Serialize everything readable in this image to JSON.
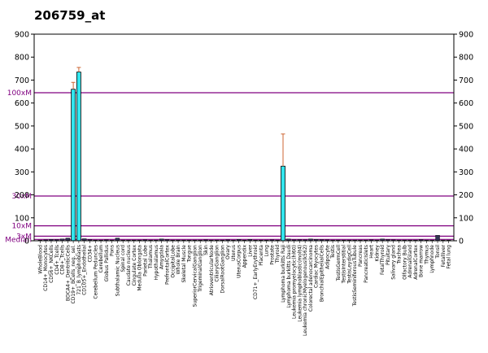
{
  "chart_data": {
    "type": "bar",
    "title": "206759_at",
    "ylim": [
      0,
      900
    ],
    "yticks": [
      0,
      100,
      200,
      300,
      400,
      500,
      600,
      700,
      800,
      900
    ],
    "bar_color": "#33e6ee",
    "line_color": "#800080",
    "error_color": "#cc6633",
    "reference_lines": [
      {
        "label": "100xM",
        "value": 645
      },
      {
        "label": "30xM",
        "value": 195
      },
      {
        "label": "10xM",
        "value": 65
      },
      {
        "label": "3xM",
        "value": 20
      },
      {
        "label": "Median",
        "value": 6
      }
    ],
    "categories": [
      "WholeBlood",
      "CD14+_Monocytes",
      "CD56+_NKCells",
      "CD4+_Tcells",
      "CD8+_Tcells",
      "BDCA4+_DentriticCells",
      "CD19+_BCells_neg._sel.",
      "721_B_lymphoblasts",
      "CD105+_Endothelial",
      "CD34+",
      "Cerebellum Peduncles",
      "Cerebellum",
      "Globus Pallidus",
      "Pons",
      "Subthalamic Nucleus",
      "Spinal cord",
      "Caudate nucleus",
      "Cingulate Cortex",
      "Medulla Oblongata",
      "Parietal Lobe",
      "Thalamus",
      "Hypothalamus",
      "Amygdala",
      "PrefrontalCortex",
      "OccipitalLobe",
      "Whole Brain",
      "Skeletal Muscle",
      "Tongue",
      "SuperiorCervicalGanglion",
      "TrigeminalGanglion",
      "Skin",
      "AtrioventricularNode",
      "CiliaryGanglion",
      "DorsalRootGanglion",
      "Ovary",
      "Uterus",
      "UterusCorpus",
      "Appendix",
      "Liver",
      "CD71+_EarlyErythroid",
      "Placenta",
      "Lung",
      "Prostate",
      "Thyroid",
      "Lymphoma burkitts Raji",
      "Lymphoma burkitts Daudi",
      "Leukemia promyelocytic(hl60)",
      "Leukemia lymphoblastic(molt4)",
      "Leukemia chronicMyelogenous(k562)",
      "Colorectal adenocarcinoma",
      "Cardiac Myocytes",
      "BronchialEpithelialCells",
      "Adipocyte",
      "Testis",
      "TestisGermCell",
      "TestisInterstitial",
      "TestisLeydigCell",
      "TestisSeminiferousTubule",
      "Pancreas",
      "PancreaticIslets",
      "Heart",
      "Kidney",
      "FetalThyroid",
      "Pituitary",
      "Salivary gland",
      "Trachea",
      "Olfactory Bulb",
      "AdrenalGland",
      "AdrenalCortex",
      "Bone marrow",
      "Thymus",
      "Lymphnode",
      "Tonsil",
      "Fetalliver",
      "Fetal lung"
    ],
    "x_labels": [
      "WholeBlood",
      "CD14+_Monocytes",
      "CD56+_NKCells",
      "CD4+_Tcells",
      "CD8+_Tcells",
      "BDCA4+_DentriticCells",
      "CD19+_BCells_neg._sel.",
      "721_B_lymphoblasts",
      "CD105+_Endothelial",
      "CD34+",
      "Cerebellum Peduncles",
      "Cerebellum",
      "Globus Pallidus",
      "Pons",
      "Subthalamic Nucleus",
      "Spinal cord",
      "Caudate nucleus",
      "Cingulate Cortex",
      "Medulla Oblongata",
      "Parietal Lobe",
      "Thalamus",
      "Hypothalamus",
      "Amygdala",
      "PrefrontalCortex",
      "OccipitalLobe",
      "Whole Brain",
      "Skeletal Muscle",
      "Tongue",
      "SuperiorCervicalGanglion",
      "TrigeminalGanglion",
      "Skin",
      "AtrioventricularNode",
      "CiliaryGanglion",
      "DorsalRootGanglion",
      "Ovary",
      "Uterus",
      "UterusCorpus",
      "Appendix",
      "Liver",
      "CD71+_EarlyErythroid",
      "Placenta",
      "Lung",
      "Prostate",
      "Thyroid",
      "Lymphoma burkitts Raji",
      "Lymphoma burkitts Daudi",
      "Leukemia promyelocytic(hl60)",
      "Leukemia lymphoblastic(molt4)",
      "Leukemia chronicMyelogenous(k562)",
      "Colorectal adenocarcinoma",
      "Cardiac Myocytes",
      "BronchialEpithelialCells",
      "Adipocyte",
      "Testis",
      "TestisGermCell",
      "TestisInterstitial",
      "TestisLeydigCell",
      "TestisSeminiferousTubule",
      "Pancreas",
      "PancreaticIslets",
      "Heart",
      "Kidney",
      "FetalThyroid",
      "Pituitary",
      "Salivary gland",
      "Trachea",
      "Olfactory Bulb",
      "AdrenalGland",
      "AdrenalCortex",
      "Bone marrow",
      "Thymus",
      "Lymphnode",
      "Tonsil",
      "Fetalliver",
      "Fetal lung"
    ],
    "values": [
      3,
      4,
      6,
      5,
      8,
      12,
      660,
      735,
      9,
      5,
      3,
      3,
      4,
      3,
      12,
      3,
      3,
      3,
      3,
      4,
      3,
      3,
      8,
      5,
      3,
      3,
      3,
      3,
      3,
      3,
      4,
      3,
      3,
      3,
      4,
      3,
      6,
      3,
      6,
      3,
      3,
      3,
      4,
      3,
      325,
      8,
      4,
      5,
      4,
      8,
      6,
      5,
      4,
      3,
      3,
      3,
      3,
      3,
      3,
      3,
      4,
      3,
      8,
      5,
      4,
      3,
      3,
      3,
      3,
      5,
      3,
      3,
      24,
      3,
      3
    ],
    "errors": [
      0,
      0,
      0,
      0,
      0,
      0,
      30,
      20,
      0,
      0,
      0,
      0,
      0,
      0,
      0,
      0,
      0,
      0,
      0,
      0,
      0,
      0,
      0,
      0,
      0,
      0,
      0,
      0,
      0,
      0,
      0,
      0,
      0,
      0,
      0,
      0,
      0,
      0,
      0,
      0,
      0,
      0,
      0,
      0,
      140,
      0,
      0,
      0,
      0,
      0,
      0,
      0,
      0,
      0,
      0,
      0,
      0,
      0,
      0,
      0,
      0,
      0,
      0,
      0,
      0,
      0,
      0,
      0,
      0,
      0,
      0,
      0,
      0,
      0,
      0
    ]
  }
}
